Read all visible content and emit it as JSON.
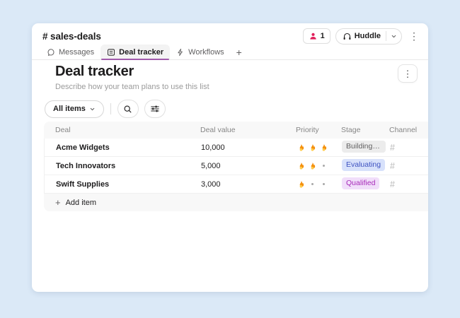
{
  "colors": {
    "page_bg": "#dbe9f7",
    "accent_tab_underline": "#a05aab",
    "member_icon_pink": "#e01e5a",
    "stage_gray_bg": "#ececec",
    "stage_gray_text": "#616061",
    "stage_blue_bg": "#d7e1fb",
    "stage_blue_text": "#3e52c0",
    "stage_purple_bg": "#f1defa",
    "stage_purple_text": "#a72bb8"
  },
  "channel_header": {
    "name": "# sales-deals",
    "member_count": "1",
    "huddle_label": "Huddle",
    "icons": {
      "members": "person-icon",
      "huddle": "headphones-icon",
      "huddle_expand": "chevron-down-icon",
      "more": "kebab-menu-icon"
    }
  },
  "tab_bar": {
    "tabs": [
      {
        "label": "Messages",
        "icon": "message-bubble-icon",
        "active": false
      },
      {
        "label": "Deal tracker",
        "icon": "list-icon",
        "active": true
      },
      {
        "label": "Workflows",
        "icon": "bolt-icon",
        "active": false
      }
    ],
    "add_tab_label": "+"
  },
  "list_view": {
    "title": "Deal tracker",
    "description": "Describe how your team plans to use this list",
    "more_menu_icon": "kebab-menu-icon",
    "toolbar": {
      "filter_label": "All items",
      "icons": {
        "search": "search-icon",
        "adjust": "sliders-icon"
      }
    },
    "table": {
      "columns": [
        "Deal",
        "Deal value",
        "Priority",
        "Stage",
        "Channel"
      ],
      "rows": [
        {
          "deal": "Acme Widgets",
          "deal_value": "10,000",
          "priority": {
            "fires": 3,
            "dots": 0
          },
          "stage": "Building pro…",
          "stage_color": "gray",
          "channel_hash": "#"
        },
        {
          "deal": "Tech Innovators",
          "deal_value": "5,000",
          "priority": {
            "fires": 2,
            "dots": 1
          },
          "stage": "Evaluating",
          "stage_color": "blue",
          "channel_hash": "#"
        },
        {
          "deal": "Swift Supplies",
          "deal_value": "3,000",
          "priority": {
            "fires": 1,
            "dots": 2
          },
          "stage": "Qualified",
          "stage_color": "purple",
          "channel_hash": "#"
        }
      ],
      "add_item_label": "Add item"
    }
  }
}
